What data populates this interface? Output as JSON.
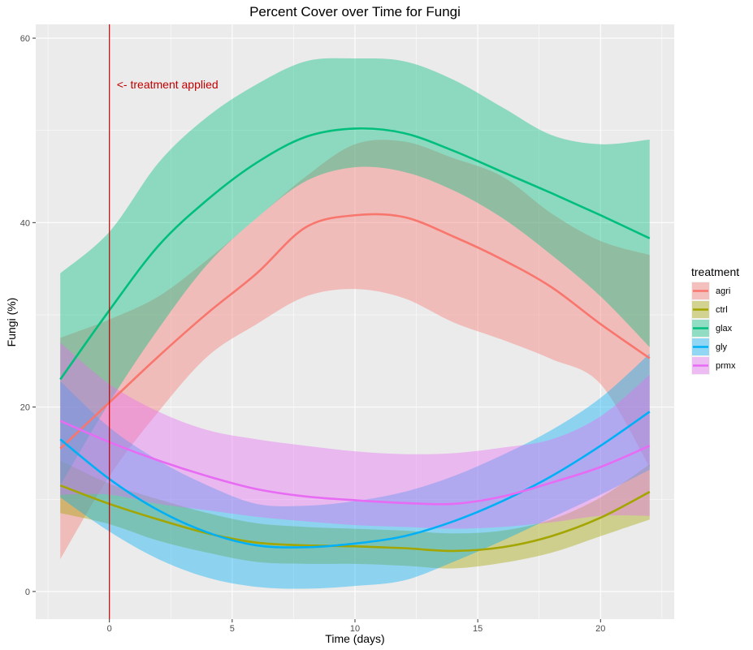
{
  "chart_data": {
    "type": "area",
    "title": "Percent Cover over Time for Fungi",
    "xlabel": "Time (days)",
    "ylabel": "Fungi (%)",
    "xlim": [
      -3,
      23
    ],
    "ylim": [
      -3,
      61.5
    ],
    "x_ticks": [
      0,
      5,
      10,
      15,
      20
    ],
    "y_ticks": [
      0,
      20,
      40,
      60
    ],
    "grid": true,
    "legend": {
      "title": "treatment",
      "placement": "right"
    },
    "vline": {
      "x": 0,
      "color": "#c00000"
    },
    "annotation": {
      "text": "<- treatment applied",
      "x": 0.3,
      "y": 55,
      "color": "#c00000"
    },
    "x": [
      -2,
      0,
      2,
      4,
      6,
      8,
      10,
      12,
      14,
      16,
      18,
      20,
      22
    ],
    "series": [
      {
        "name": "agri",
        "color": "#f8766d",
        "mean": [
          15.5,
          20.5,
          25.5,
          30.2,
          34.5,
          39.5,
          40.8,
          40.6,
          38.5,
          36,
          33,
          29,
          25.3
        ],
        "lower": [
          3.5,
          12.5,
          19.5,
          25.5,
          29,
          32,
          32.8,
          31.8,
          29.2,
          27.3,
          25.2,
          22.5,
          13.5
        ],
        "upper": [
          27.5,
          29.5,
          32,
          36,
          40.5,
          45,
          48.5,
          48.8,
          47,
          45,
          41,
          38,
          36.5
        ]
      },
      {
        "name": "ctrl",
        "color": "#a3a500",
        "mean": [
          11.5,
          9.5,
          7.8,
          6.3,
          5.3,
          5.0,
          4.9,
          4.7,
          4.4,
          4.8,
          6.0,
          8.0,
          10.8
        ],
        "lower": [
          8.5,
          7.3,
          5.5,
          4.2,
          3.2,
          3.0,
          3.0,
          2.8,
          2.5,
          3.1,
          4.2,
          6.0,
          7.8
        ],
        "upper": [
          14.2,
          11.7,
          10,
          8.5,
          7.4,
          7.0,
          6.8,
          6.6,
          6.3,
          6.6,
          7.8,
          10.2,
          13.8
        ]
      },
      {
        "name": "glax",
        "color": "#00bf7d",
        "mean": [
          23,
          30.5,
          37.5,
          42.5,
          46.5,
          49.3,
          50.2,
          49.7,
          47.8,
          45.5,
          43.2,
          40.8,
          38.3
        ],
        "lower": [
          11.5,
          20.5,
          28.5,
          35.5,
          40.5,
          44.5,
          46,
          45.5,
          43.5,
          40.5,
          36.5,
          32,
          26.5
        ],
        "upper": [
          34.5,
          39,
          46.5,
          51.5,
          55,
          57.5,
          57.8,
          57.5,
          55.5,
          52.5,
          49.5,
          48.5,
          49
        ]
      },
      {
        "name": "gly",
        "color": "#00b0f6",
        "mean": [
          16.5,
          12.2,
          8.8,
          6.4,
          5.0,
          4.8,
          5.2,
          6.0,
          7.6,
          9.8,
          12.5,
          15.8,
          19.5
        ],
        "lower": [
          10.2,
          6.5,
          3.5,
          1.5,
          0.5,
          0.3,
          0.6,
          1.2,
          3.2,
          5.5,
          8.0,
          10.5,
          13.2
        ],
        "upper": [
          22.8,
          17.8,
          14.2,
          11.5,
          9.5,
          9.3,
          9.8,
          10.8,
          12.5,
          14.8,
          17.5,
          21,
          25.8
        ]
      },
      {
        "name": "prmx",
        "color": "#e76bf3",
        "mean": [
          18.5,
          16.2,
          14.2,
          12.5,
          11.1,
          10.3,
          9.9,
          9.6,
          9.5,
          10.3,
          11.8,
          13.5,
          15.8
        ],
        "lower": [
          10.5,
          10.5,
          9.5,
          8.8,
          8.1,
          7.6,
          7.2,
          7.0,
          6.8,
          7.0,
          7.5,
          8.2,
          8.2
        ],
        "upper": [
          27,
          22.5,
          19.5,
          17.5,
          16.5,
          15.8,
          15.2,
          14.9,
          15.0,
          15.6,
          16.5,
          19,
          23.5
        ]
      }
    ]
  }
}
